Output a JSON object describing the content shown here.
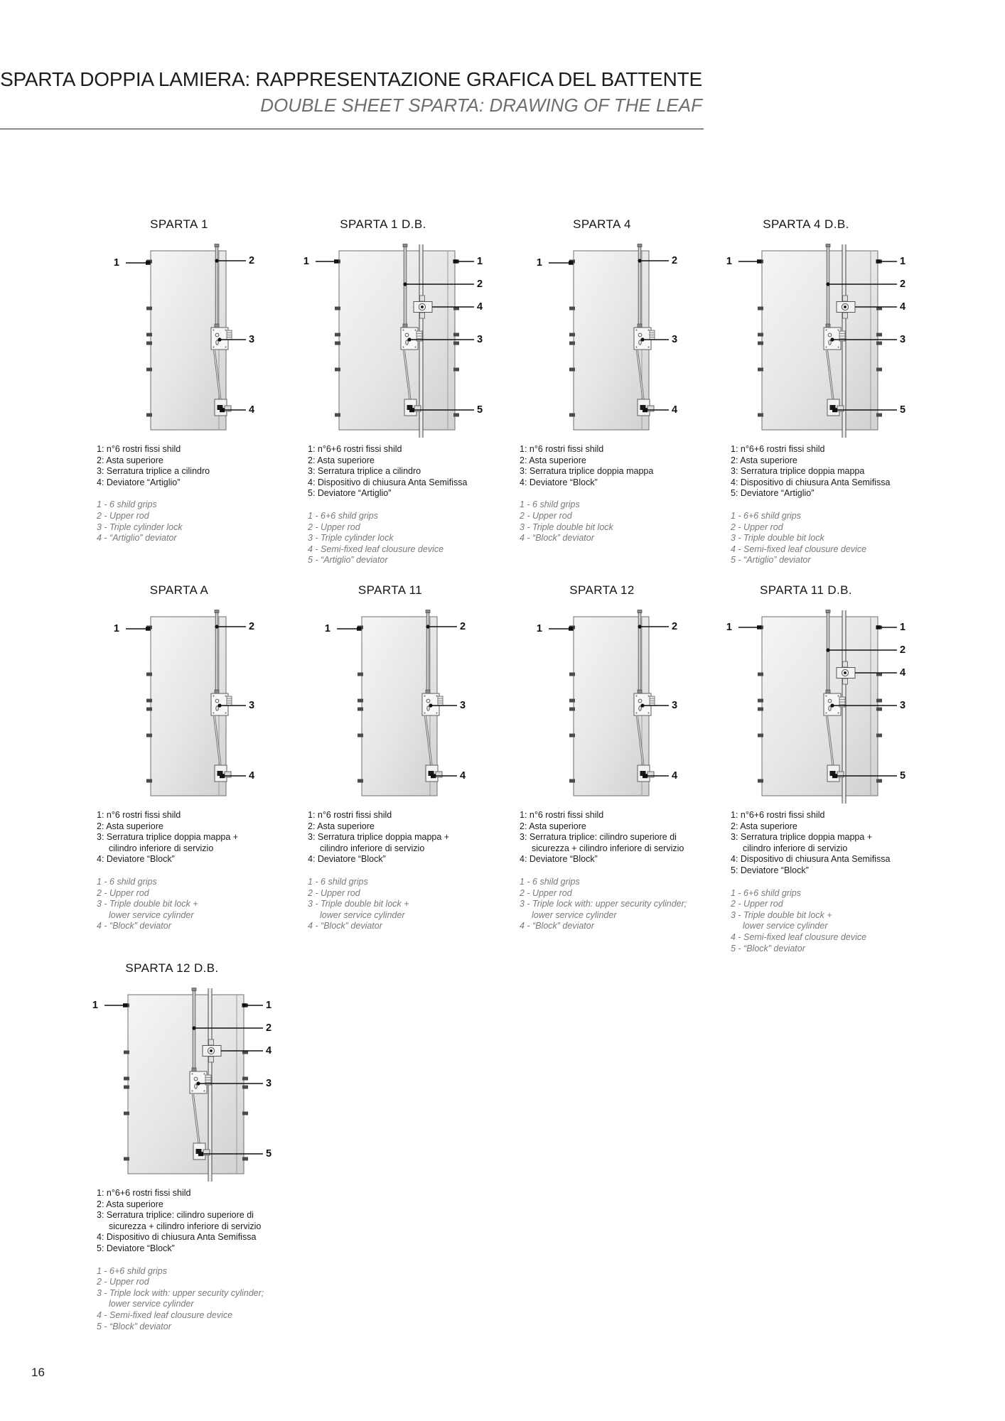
{
  "header": {
    "title_it": "SPARTA DOPPIA LAMIERA: RAPPRESENTAZIONE GRAFICA DEL BATTENTE",
    "title_en": "DOUBLE SHEET SPARTA: DRAWING OF THE LEAF"
  },
  "page_number": "16",
  "panels": [
    {
      "id": "sparta-1",
      "title": "SPARTA 1",
      "type": "single",
      "callouts": {
        "left": [
          "1"
        ],
        "right": [
          "2",
          "3",
          "4"
        ]
      },
      "legend_it": [
        "1: n°6 rostri fissi shild",
        "2: Asta superiore",
        "3: Serratura triplice a cilindro",
        "4: Deviatore  “Artiglio”"
      ],
      "legend_en": [
        "1 - 6 shild grips",
        "2 - Upper rod",
        "3 - Triple cylinder lock",
        "4 - “Artiglio” deviator"
      ]
    },
    {
      "id": "sparta-1-db",
      "title": "SPARTA 1 D.B.",
      "type": "double",
      "callouts": {
        "left": [
          "1"
        ],
        "right": [
          "1",
          "2",
          "4",
          "3",
          "5"
        ]
      },
      "legend_it": [
        "1: n°6+6 rostri fissi shild",
        "2: Asta superiore",
        "3: Serratura triplice a cilindro",
        "4: Dispositivo di chiusura Anta Semifissa",
        "5: Deviatore “Artiglio”"
      ],
      "legend_en": [
        "1 - 6+6 shild grips",
        "2 - Upper rod",
        "3 - Triple cylinder lock",
        "4 - Semi-fixed leaf clousure device",
        "5 - “Artiglio” deviator"
      ]
    },
    {
      "id": "sparta-4",
      "title": "SPARTA 4",
      "type": "single",
      "callouts": {
        "left": [
          "1"
        ],
        "right": [
          "2",
          "3",
          "4"
        ]
      },
      "legend_it": [
        "1: n°6 rostri fissi shild",
        "2: Asta superiore",
        "3: Serratura triplice doppia mappa",
        "4: Deviatore “Block”"
      ],
      "legend_en": [
        "1 - 6 shild grips",
        "2 - Upper rod",
        "3 - Triple double bit lock",
        "4 - “Block” deviator"
      ]
    },
    {
      "id": "sparta-4-db",
      "title": "SPARTA 4 D.B.",
      "type": "double",
      "callouts": {
        "left": [
          "1"
        ],
        "right": [
          "1",
          "2",
          "4",
          "3",
          "5"
        ]
      },
      "legend_it": [
        "1: n°6+6 rostri fissi shild",
        "2: Asta superiore",
        "3: Serratura triplice doppia mappa",
        "4: Dispositivo di chiusura Anta Semifissa",
        "5: Deviatore “Artiglio”"
      ],
      "legend_en": [
        "1 - 6+6 shild grips",
        "2 - Upper rod",
        "3 - Triple double bit lock",
        "4 - Semi-fixed leaf clousure device",
        "5 - “Artiglio” deviator"
      ]
    },
    {
      "id": "sparta-a",
      "title": "SPARTA A",
      "type": "single",
      "callouts": {
        "left": [
          "1"
        ],
        "right": [
          "2",
          "3",
          "4"
        ]
      },
      "legend_it": [
        "1: n°6 rostri fissi shild",
        "2: Asta superiore",
        "3: Serratura triplice doppia mappa +",
        "   cilindro inferiore di servizio",
        "4: Deviatore “Block”"
      ],
      "legend_en": [
        "1 - 6 shild grips",
        "2 - Upper rod",
        "3 - Triple double bit lock +",
        "   lower service cylinder",
        "4 - “Block” deviator"
      ]
    },
    {
      "id": "sparta-11",
      "title": "SPARTA 11",
      "type": "single",
      "callouts": {
        "left": [
          "1"
        ],
        "right": [
          "2",
          "3",
          "4"
        ]
      },
      "legend_it": [
        "1: n°6 rostri fissi shild",
        "2: Asta superiore",
        "3: Serratura triplice doppia mappa +",
        "   cilindro inferiore di servizio",
        "4: Deviatore “Block”"
      ],
      "legend_en": [
        "1 - 6 shild grips",
        "2 - Upper rod",
        "3 - Triple double bit lock +",
        "   lower service cylinder",
        "4 - “Block” deviator"
      ]
    },
    {
      "id": "sparta-12",
      "title": "SPARTA 12",
      "type": "single",
      "callouts": {
        "left": [
          "1"
        ],
        "right": [
          "2",
          "3",
          "4"
        ]
      },
      "legend_it": [
        "1: n°6 rostri fissi shild",
        "2: Asta superiore",
        "3: Serratura triplice: cilindro superiore di",
        "   sicurezza + cilindro inferiore di servizio",
        "4: Deviatore “Block”"
      ],
      "legend_en": [
        "1 - 6 shild grips",
        "2 - Upper rod",
        "3 - Triple lock with: upper security cylinder;",
        "   lower service cylinder",
        "4 - “Block” deviator"
      ]
    },
    {
      "id": "sparta-11-db",
      "title": "SPARTA 11 D.B.",
      "type": "double",
      "callouts": {
        "left": [
          "1"
        ],
        "right": [
          "1",
          "2",
          "4",
          "3",
          "5"
        ]
      },
      "legend_it": [
        "1: n°6+6 rostri fissi shild",
        "2: Asta superiore",
        "3: Serratura triplice doppia mappa +",
        "   cilindro inferiore di servizio",
        "4: Dispositivo di chiusura Anta Semifissa",
        "5: Deviatore “Block”"
      ],
      "legend_en": [
        "1 - 6+6 shild grips",
        "2 - Upper rod",
        "3 - Triple double bit lock +",
        "    lower service cylinder",
        "4 - Semi-fixed leaf clousure device",
        "5 - “Block” deviator"
      ]
    },
    {
      "id": "sparta-12-db",
      "title": "SPARTA 12 D.B.",
      "type": "double",
      "callouts": {
        "left": [
          "1"
        ],
        "right": [
          "1",
          "2",
          "4",
          "3",
          "5"
        ]
      },
      "legend_it": [
        "1: n°6+6 rostri fissi shild",
        "2: Asta superiore",
        "3: Serratura triplice: cilindro superiore di",
        "   sicurezza + cilindro inferiore di servizio",
        "4: Dispositivo di chiusura Anta Semifissa",
        "5: Deviatore “Block”"
      ],
      "legend_en": [
        "1 - 6+6 shild grips",
        "2 - Upper rod",
        "3 - Triple lock with: upper security cylinder;",
        "   lower service cylinder",
        "4 - Semi-fixed leaf clousure device",
        "5 - “Block” deviator"
      ]
    }
  ]
}
